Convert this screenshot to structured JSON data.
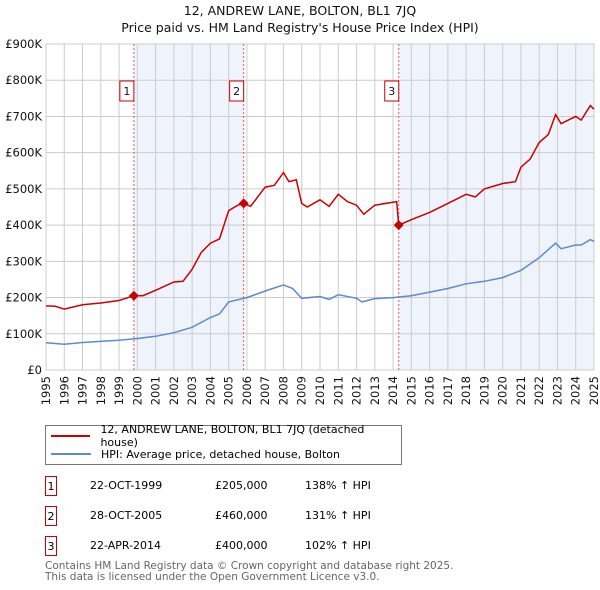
{
  "chart_data": {
    "type": "line",
    "title": "12, ANDREW LANE, BOLTON, BL1 7JQ",
    "subtitle": "Price paid vs. HM Land Registry's House Price Index (HPI)",
    "xlim": [
      1995,
      2025
    ],
    "ylim": [
      0,
      900000
    ],
    "x_ticks": [
      "1995",
      "1996",
      "1997",
      "1998",
      "1999",
      "2000",
      "2001",
      "2002",
      "2003",
      "2004",
      "2005",
      "2006",
      "2007",
      "2008",
      "2009",
      "2010",
      "2011",
      "2012",
      "2013",
      "2014",
      "2015",
      "2016",
      "2017",
      "2018",
      "2019",
      "2020",
      "2021",
      "2022",
      "2023",
      "2024",
      "2025"
    ],
    "y_ticks": [
      {
        "v": 0,
        "label": "£0"
      },
      {
        "v": 100000,
        "label": "£100K"
      },
      {
        "v": 200000,
        "label": "£200K"
      },
      {
        "v": 300000,
        "label": "£300K"
      },
      {
        "v": 400000,
        "label": "£400K"
      },
      {
        "v": 500000,
        "label": "£500K"
      },
      {
        "v": 600000,
        "label": "£600K"
      },
      {
        "v": 700000,
        "label": "£700K"
      },
      {
        "v": 800000,
        "label": "£800K"
      },
      {
        "v": 900000,
        "label": "£900K"
      }
    ],
    "grid": true,
    "series": [
      {
        "name": "12, ANDREW LANE, BOLTON, BL1 7JQ (detached house)",
        "color": "#cc0000",
        "x": [
          1995,
          1995.5,
          1996,
          1997,
          1998,
          1999,
          1999.81,
          2000.3,
          2001,
          2002,
          2002.5,
          2003,
          2003.5,
          2004,
          2004.5,
          2005,
          2005.5,
          2005.82,
          2006.2,
          2007,
          2007.5,
          2008,
          2008.3,
          2008.7,
          2009,
          2009.3,
          2010,
          2010.5,
          2011,
          2011.5,
          2012,
          2012.4,
          2013,
          2014.2,
          2014.31,
          2015,
          2016,
          2017,
          2018,
          2018.5,
          2019,
          2020,
          2020.7,
          2021,
          2021.5,
          2022,
          2022.5,
          2022.9,
          2023.2,
          2024,
          2024.3,
          2024.8,
          2025
        ],
        "y": [
          177000,
          176000,
          168000,
          180000,
          185000,
          192000,
          205000,
          205000,
          220000,
          243000,
          245000,
          278000,
          325000,
          350000,
          362000,
          440000,
          455000,
          460000,
          452000,
          505000,
          510000,
          545000,
          520000,
          525000,
          460000,
          450000,
          470000,
          452000,
          485000,
          465000,
          455000,
          430000,
          455000,
          465000,
          400000,
          415000,
          435000,
          460000,
          485000,
          478000,
          500000,
          515000,
          520000,
          560000,
          582000,
          628000,
          650000,
          705000,
          680000,
          700000,
          690000,
          730000,
          720000
        ]
      },
      {
        "name": "HPI: Average price, detached house, Bolton",
        "color": "#5b8bd0",
        "x": [
          1995,
          1996,
          1997,
          1998,
          1999,
          2000,
          2001,
          2002,
          2003,
          2004,
          2004.5,
          2005,
          2006,
          2007,
          2008,
          2008.5,
          2009,
          2010,
          2010.5,
          2011,
          2012,
          2012.3,
          2013,
          2014,
          2015,
          2016,
          2017,
          2018,
          2019,
          2020,
          2021,
          2022,
          2022.9,
          2023.2,
          2024,
          2024.3,
          2024.8,
          2025
        ],
        "y": [
          75000,
          71000,
          76000,
          79000,
          82000,
          87000,
          93000,
          103000,
          118000,
          145000,
          155000,
          188000,
          200000,
          218000,
          235000,
          225000,
          198000,
          203000,
          195000,
          208000,
          198000,
          188000,
          197000,
          200000,
          205000,
          215000,
          225000,
          238000,
          245000,
          255000,
          275000,
          310000,
          350000,
          335000,
          345000,
          345000,
          360000,
          355000
        ]
      }
    ],
    "sales": [
      {
        "id": "1",
        "x": 1999.81,
        "price": 205000
      },
      {
        "id": "2",
        "x": 2005.82,
        "price": 460000
      },
      {
        "id": "3",
        "x": 2014.31,
        "price": 400000
      }
    ],
    "legend_position": "below"
  },
  "legend": {
    "property": "12, ANDREW LANE, BOLTON, BL1 7JQ (detached house)",
    "hpi": "HPI: Average price, detached house, Bolton"
  },
  "sales_table": [
    {
      "num": "1",
      "date": "22-OCT-1999",
      "price": "£205,000",
      "hpi": "138% ↑ HPI"
    },
    {
      "num": "2",
      "date": "28-OCT-2005",
      "price": "£460,000",
      "hpi": "131% ↑ HPI"
    },
    {
      "num": "3",
      "date": "22-APR-2014",
      "price": "£400,000",
      "hpi": "102% ↑ HPI"
    }
  ],
  "footer": {
    "line1": "Contains HM Land Registry data © Crown copyright and database right 2025.",
    "line2": "This data is licensed under the Open Government Licence v3.0."
  },
  "colors": {
    "red": "#cc0000",
    "blue": "#5b8bd0",
    "shade": "#eef3fc"
  }
}
